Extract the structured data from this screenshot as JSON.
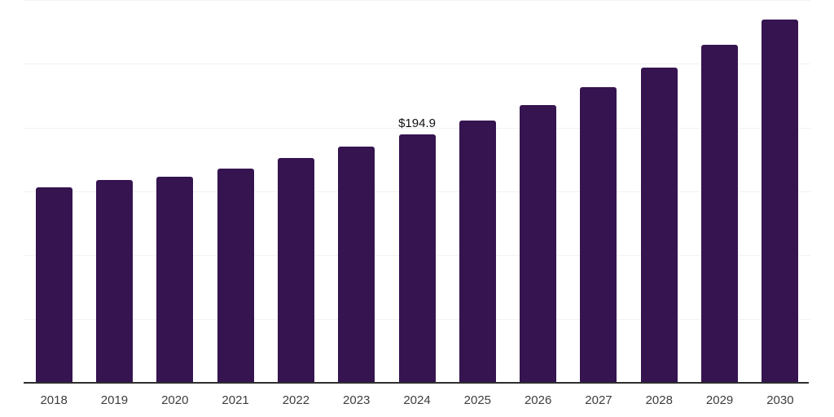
{
  "chart_data": {
    "type": "bar",
    "categories": [
      "2018",
      "2019",
      "2020",
      "2021",
      "2022",
      "2023",
      "2024",
      "2025",
      "2026",
      "2027",
      "2028",
      "2029",
      "2030"
    ],
    "values": [
      153.5,
      159.2,
      161.6,
      167.6,
      176.2,
      185.1,
      194.9,
      205.3,
      217.5,
      231.9,
      246.8,
      264.9,
      284.7
    ],
    "ylim": [
      0,
      300
    ],
    "gridline_step": 50,
    "grid": true,
    "legend": null,
    "y_tick_labels": [],
    "annotations": [
      {
        "category": "2024",
        "text": "$194.9"
      }
    ],
    "colors": {
      "bar": "#351450",
      "gridline": "#f2f2f3",
      "axis_line": "#2e2e2e",
      "tick_label": "#3d3d3d",
      "annotation": "#111111",
      "background": "#ffffff"
    }
  }
}
